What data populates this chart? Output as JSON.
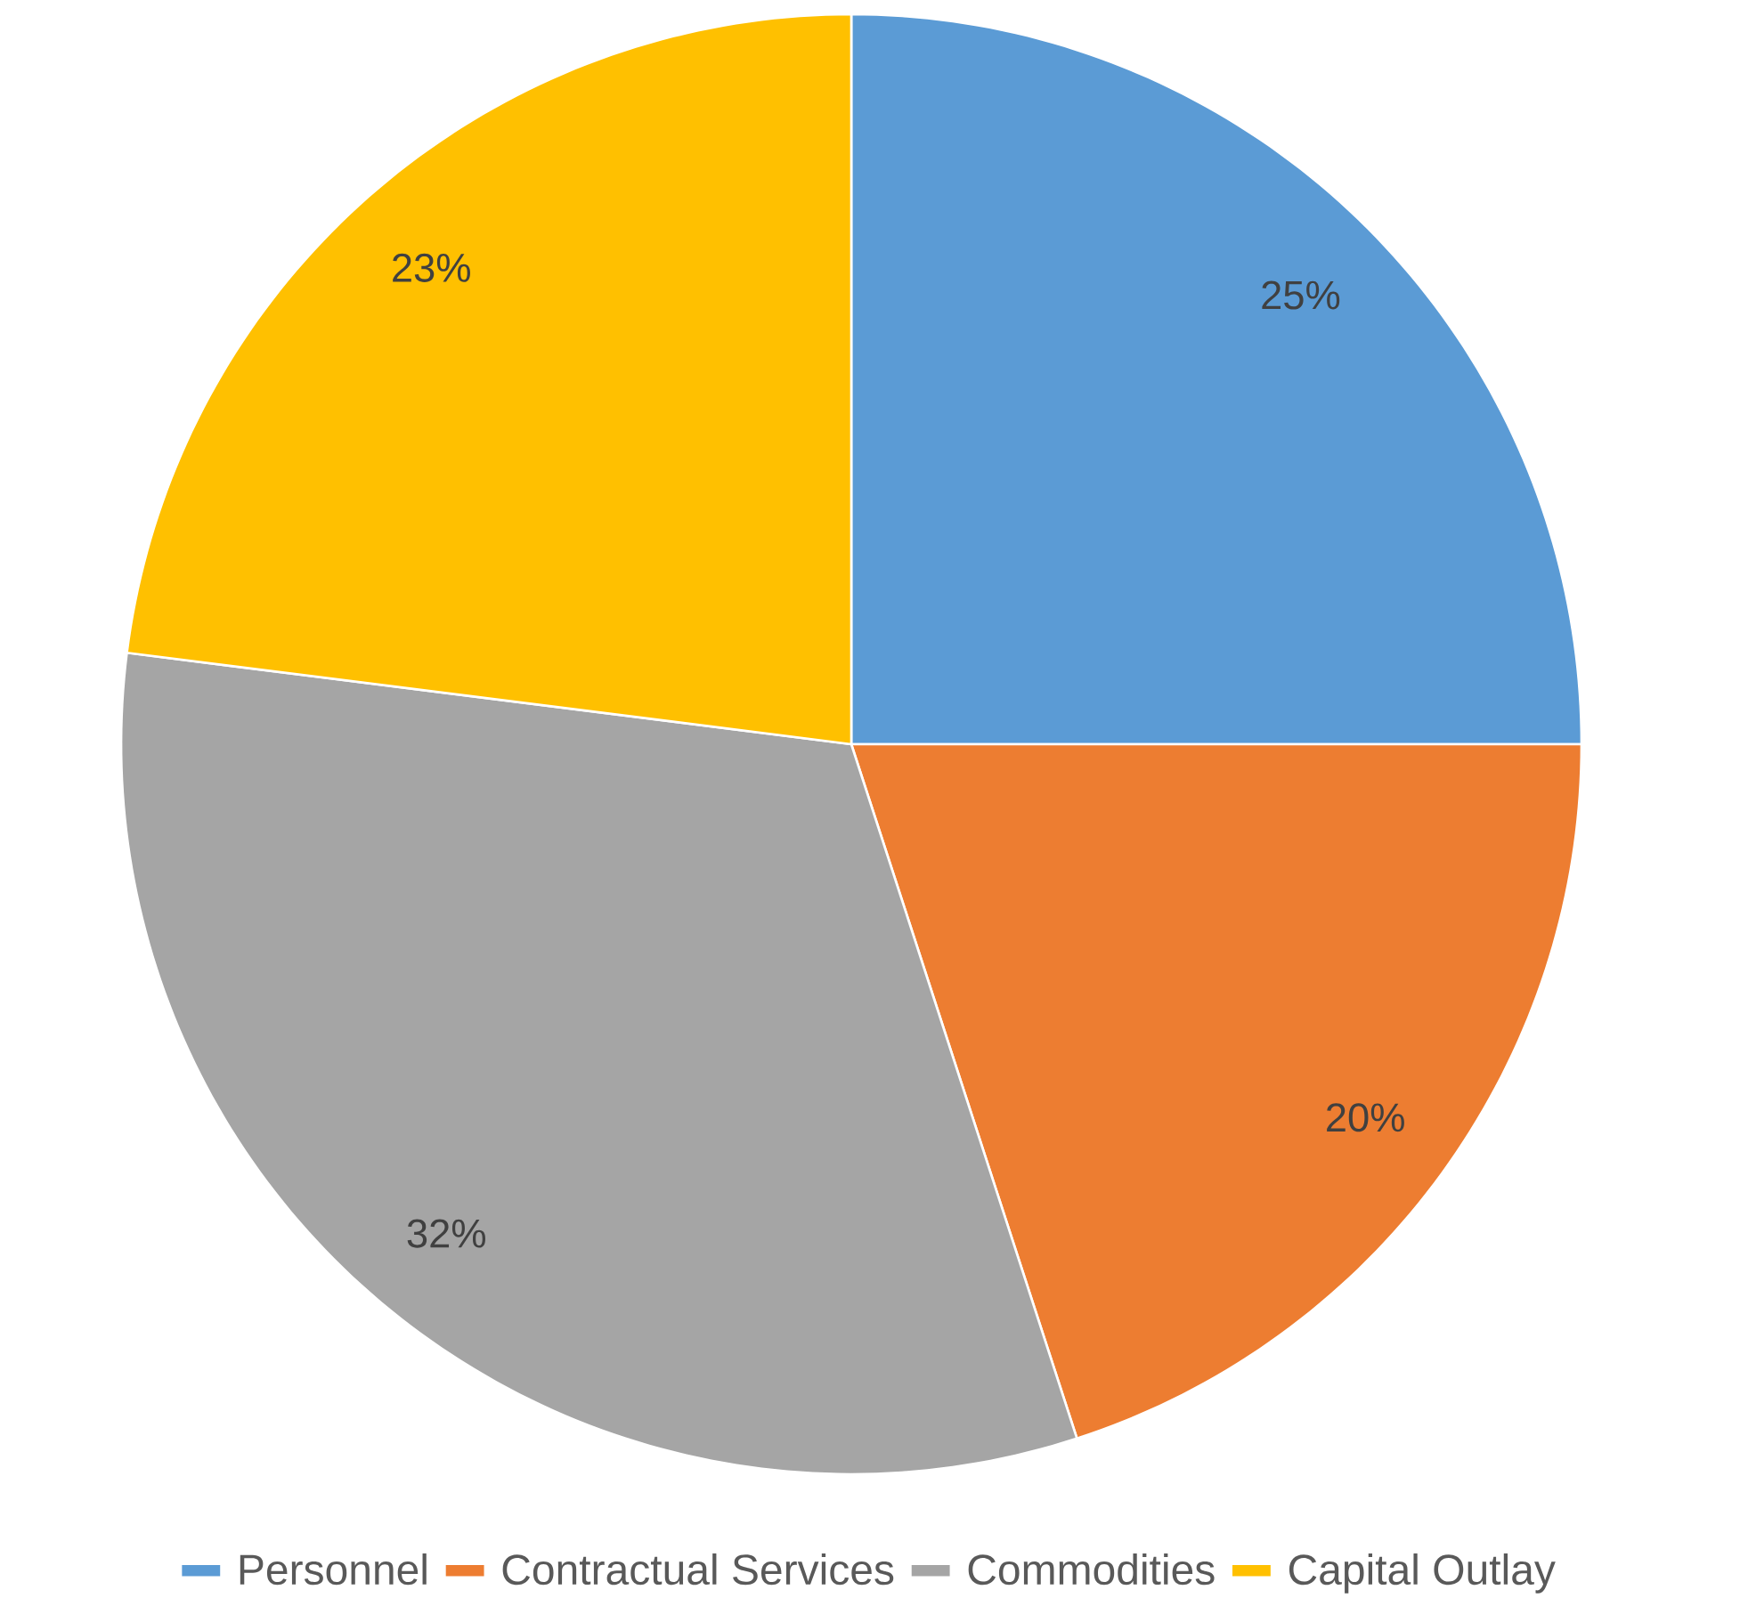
{
  "chart_data": {
    "type": "pie",
    "categories": [
      "Personnel",
      "Contractual Services",
      "Commodities",
      "Capital Outlay"
    ],
    "values": [
      25,
      20,
      32,
      23
    ],
    "value_labels": [
      "25%",
      "20%",
      "32%",
      "23%"
    ],
    "colors": [
      "#5b9bd5",
      "#ed7d31",
      "#a5a5a5",
      "#ffc000"
    ],
    "legend": "bottom"
  }
}
